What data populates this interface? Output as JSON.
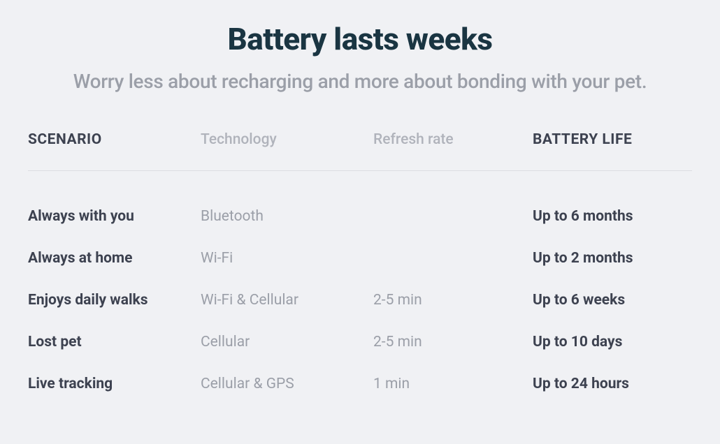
{
  "title": "Battery lasts weeks",
  "subtitle": "Worry less about recharging and more about bonding with your pet.",
  "table": {
    "columns": [
      {
        "label": "SCENARIO",
        "style": "strong"
      },
      {
        "label": "Technology",
        "style": "muted"
      },
      {
        "label": "Refresh rate",
        "style": "muted"
      },
      {
        "label": "BATTERY LIFE",
        "style": "strong"
      }
    ],
    "rows": [
      {
        "scenario": "Always with you",
        "technology": "Bluetooth",
        "refresh": "",
        "battery": "Up to 6 months"
      },
      {
        "scenario": "Always at home",
        "technology": "Wi-Fi",
        "refresh": "",
        "battery": "Up to 2 months"
      },
      {
        "scenario": "Enjoys daily walks",
        "technology": "Wi-Fi & Cellular",
        "refresh": "2-5 min",
        "battery": "Up to 6 weeks"
      },
      {
        "scenario": "Lost pet",
        "technology": "Cellular",
        "refresh": "2-5 min",
        "battery": "Up to 10 days"
      },
      {
        "scenario": "Live tracking",
        "technology": "Cellular & GPS",
        "refresh": "1 min",
        "battery": "Up to 24 hours"
      }
    ]
  },
  "styling": {
    "background_color": "#f0f1f4",
    "title_color": "#1a3542",
    "subtitle_color": "#9b9fa8",
    "strong_text_color": "#3d4250",
    "muted_text_color": "#9b9fa8",
    "divider_color": "#dcdde1",
    "title_fontsize": 44,
    "subtitle_fontsize": 28,
    "cell_fontsize": 21,
    "column_widths": [
      "26%",
      "26%",
      "24%",
      "24%"
    ]
  }
}
